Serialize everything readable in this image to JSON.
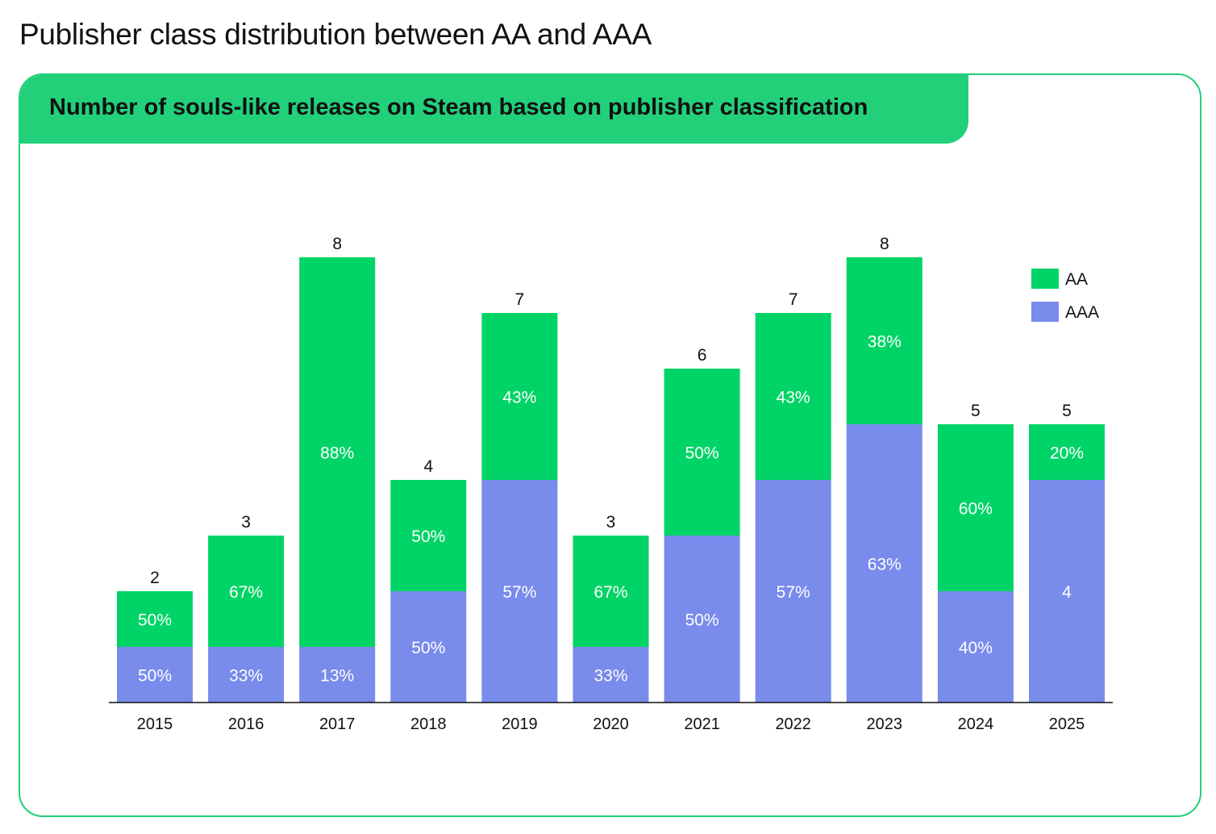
{
  "page_title": "Publisher class distribution between AA and AAA",
  "card_title": "Number of souls-like releases on Steam based on publisher classification",
  "colors": {
    "AA": "#00d466",
    "AAA": "#798beb",
    "accent": "#22d07a"
  },
  "chart_data": {
    "type": "bar",
    "stacked": true,
    "categories": [
      "2015",
      "2016",
      "2017",
      "2018",
      "2019",
      "2020",
      "2021",
      "2022",
      "2023",
      "2024",
      "2025"
    ],
    "totals": [
      "2",
      "3",
      "8",
      "4",
      "7",
      "3",
      "6",
      "7",
      "8",
      "5",
      "5"
    ],
    "series": [
      {
        "name": "AAA",
        "values": [
          1,
          1,
          1,
          2,
          4,
          1,
          3,
          4,
          5,
          2,
          4
        ],
        "labels": [
          "50%",
          "33%",
          "13%",
          "50%",
          "57%",
          "33%",
          "50%",
          "57%",
          "63%",
          "40%",
          "4"
        ]
      },
      {
        "name": "AA",
        "values": [
          1,
          2,
          7,
          2,
          3,
          2,
          3,
          3,
          3,
          3,
          1
        ],
        "labels": [
          "50%",
          "67%",
          "88%",
          "50%",
          "43%",
          "67%",
          "50%",
          "43%",
          "38%",
          "60%",
          "20%"
        ]
      }
    ],
    "ylim": [
      0,
      8
    ],
    "grid": false,
    "legend_position": "top-right"
  }
}
